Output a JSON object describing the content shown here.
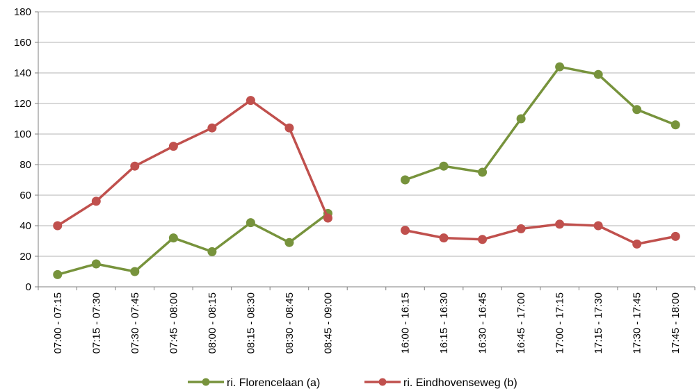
{
  "chart_data": {
    "type": "line",
    "categories": [
      "07:00 - 07:15",
      "07:15 - 07:30",
      "07:30 - 07:45",
      "07:45 - 08:00",
      "08:00 - 08:15",
      "08:15 - 08:30",
      "08:30 - 08:45",
      "08:45 - 09:00",
      "",
      "16:00 - 16:15",
      "16:15 - 16:30",
      "16:30 - 16:45",
      "16:45 - 17:00",
      "17:00 - 17:15",
      "17:15 - 17:30",
      "17:30 - 17:45",
      "17:45 - 18:00"
    ],
    "series": [
      {
        "name": "ri. Florencelaan (a)",
        "color": "#77933c",
        "values": [
          8,
          15,
          10,
          32,
          23,
          42,
          29,
          48,
          null,
          70,
          79,
          75,
          110,
          144,
          139,
          116,
          106
        ]
      },
      {
        "name": "ri. Eindhovenseweg (b)",
        "color": "#c0504d",
        "values": [
          40,
          56,
          79,
          92,
          104,
          122,
          104,
          45,
          null,
          37,
          32,
          31,
          38,
          41,
          40,
          28,
          33
        ]
      }
    ],
    "ylim": [
      0,
      180
    ],
    "yticks": [
      0,
      20,
      40,
      60,
      80,
      100,
      120,
      140,
      160,
      180
    ],
    "grid": true,
    "legend": "bottom"
  }
}
